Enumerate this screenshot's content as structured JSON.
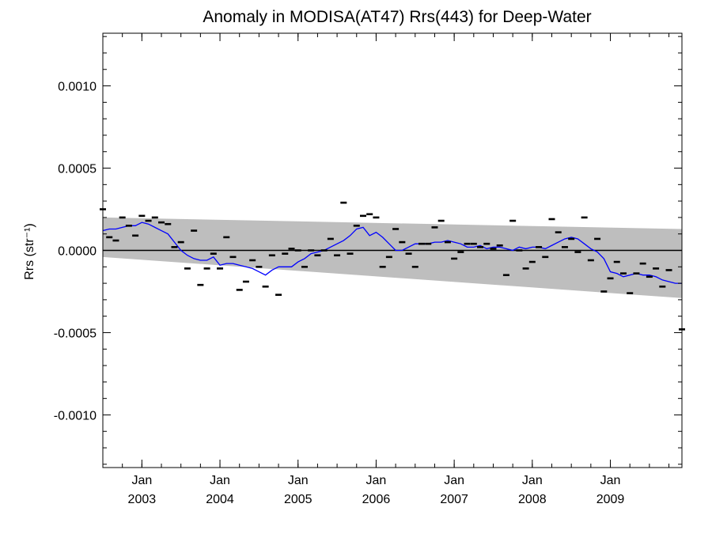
{
  "chart_data": {
    "type": "scatter",
    "title": "Anomaly in MODISA(AT47) Rrs(443) for Deep-Water",
    "ylabel": "Rrs (str⁻¹)",
    "xlabel": "",
    "xlim": [
      "2002-07",
      "2009-12"
    ],
    "ylim": [
      -0.00132,
      0.00132
    ],
    "y_ticks": [
      {
        "value": 0.001,
        "label": "0.0010"
      },
      {
        "value": 0.0005,
        "label": "0.0005"
      },
      {
        "value": 0.0,
        "label": "0.0000"
      },
      {
        "value": -0.0005,
        "label": "-0.0005"
      },
      {
        "value": -0.001,
        "label": "-0.0010"
      }
    ],
    "x_ticks": [
      {
        "value": "2003-01",
        "month": "Jan",
        "year": "2003"
      },
      {
        "value": "2004-01",
        "month": "Jan",
        "year": "2004"
      },
      {
        "value": "2005-01",
        "month": "Jan",
        "year": "2005"
      },
      {
        "value": "2006-01",
        "month": "Jan",
        "year": "2006"
      },
      {
        "value": "2007-01",
        "month": "Jan",
        "year": "2007"
      },
      {
        "value": "2008-01",
        "month": "Jan",
        "year": "2008"
      },
      {
        "value": "2009-01",
        "month": "Jan",
        "year": "2009"
      }
    ],
    "band": {
      "upper": [
        [
          "2002-07",
          0.0002
        ],
        [
          "2009-12",
          0.00013
        ]
      ],
      "lower": [
        [
          "2002-07",
          -4e-05
        ],
        [
          "2009-12",
          -0.00029
        ]
      ],
      "color": "#bebebe"
    },
    "zero_line": 0.0,
    "series": [
      {
        "kind": "points",
        "color": "#000000",
        "points": [
          [
            "2002-07",
            0.00025
          ],
          [
            "2002-08",
            8e-05
          ],
          [
            "2002-09",
            6e-05
          ],
          [
            "2002-10",
            0.0002
          ],
          [
            "2002-11",
            0.00015
          ],
          [
            "2002-12",
            9e-05
          ],
          [
            "2003-01",
            0.00021
          ],
          [
            "2003-02",
            0.00018
          ],
          [
            "2003-03",
            0.0002
          ],
          [
            "2003-04",
            0.00017
          ],
          [
            "2003-05",
            0.00016
          ],
          [
            "2003-06",
            2e-05
          ],
          [
            "2003-07",
            5e-05
          ],
          [
            "2003-08",
            -0.00011
          ],
          [
            "2003-09",
            0.00012
          ],
          [
            "2003-10",
            -0.00021
          ],
          [
            "2003-11",
            -0.00011
          ],
          [
            "2003-12",
            -2e-05
          ],
          [
            "2004-01",
            -0.00011
          ],
          [
            "2004-02",
            8e-05
          ],
          [
            "2004-03",
            -4e-05
          ],
          [
            "2004-04",
            -0.00024
          ],
          [
            "2004-05",
            -0.00019
          ],
          [
            "2004-06",
            -6e-05
          ],
          [
            "2004-07",
            -0.0001
          ],
          [
            "2004-08",
            -0.00022
          ],
          [
            "2004-09",
            -3e-05
          ],
          [
            "2004-10",
            -0.00027
          ],
          [
            "2004-11",
            -2e-05
          ],
          [
            "2004-12",
            1e-05
          ],
          [
            "2005-01",
            0.0
          ],
          [
            "2005-02",
            -0.0001
          ],
          [
            "2005-03",
            0.0
          ],
          [
            "2005-04",
            -3e-05
          ],
          [
            "2005-05",
            0.0
          ],
          [
            "2005-06",
            7e-05
          ],
          [
            "2005-07",
            -3e-05
          ],
          [
            "2005-08",
            0.00029
          ],
          [
            "2005-09",
            -2e-05
          ],
          [
            "2005-10",
            0.00015
          ],
          [
            "2005-11",
            0.00021
          ],
          [
            "2005-12",
            0.00022
          ],
          [
            "2006-01",
            0.0002
          ],
          [
            "2006-02",
            -0.0001
          ],
          [
            "2006-03",
            -4e-05
          ],
          [
            "2006-04",
            0.00013
          ],
          [
            "2006-05",
            5e-05
          ],
          [
            "2006-06",
            -2e-05
          ],
          [
            "2006-07",
            -0.0001
          ],
          [
            "2006-08",
            4e-05
          ],
          [
            "2006-09",
            4e-05
          ],
          [
            "2006-10",
            0.00014
          ],
          [
            "2006-11",
            0.00018
          ],
          [
            "2006-12",
            5e-05
          ],
          [
            "2007-01",
            -5e-05
          ],
          [
            "2007-02",
            -1e-05
          ],
          [
            "2007-03",
            4e-05
          ],
          [
            "2007-04",
            4e-05
          ],
          [
            "2007-05",
            2e-05
          ],
          [
            "2007-06",
            4e-05
          ],
          [
            "2007-07",
            1e-05
          ],
          [
            "2007-08",
            3e-05
          ],
          [
            "2007-09",
            -0.00015
          ],
          [
            "2007-10",
            0.00018
          ],
          [
            "2007-11",
            0.0
          ],
          [
            "2007-12",
            -0.00011
          ],
          [
            "2008-01",
            -7e-05
          ],
          [
            "2008-02",
            2e-05
          ],
          [
            "2008-03",
            -4e-05
          ],
          [
            "2008-04",
            0.00019
          ],
          [
            "2008-05",
            0.00011
          ],
          [
            "2008-06",
            2e-05
          ],
          [
            "2008-07",
            7e-05
          ],
          [
            "2008-08",
            -1e-05
          ],
          [
            "2008-09",
            0.0002
          ],
          [
            "2008-10",
            -6e-05
          ],
          [
            "2008-11",
            7e-05
          ],
          [
            "2008-12",
            -0.00025
          ],
          [
            "2009-01",
            -0.00017
          ],
          [
            "2009-02",
            -7e-05
          ],
          [
            "2009-03",
            -0.00014
          ],
          [
            "2009-04",
            -0.00026
          ],
          [
            "2009-05",
            -0.00014
          ],
          [
            "2009-06",
            -8e-05
          ],
          [
            "2009-07",
            -0.00016
          ],
          [
            "2009-08",
            -0.00011
          ],
          [
            "2009-09",
            -0.00022
          ],
          [
            "2009-10",
            -0.00012
          ],
          [
            "2009-12",
            -0.00048
          ]
        ]
      },
      {
        "kind": "line",
        "color": "#0000ff",
        "points": [
          [
            "2002-07",
            0.00012
          ],
          [
            "2002-08",
            0.00013
          ],
          [
            "2002-09",
            0.00013
          ],
          [
            "2002-10",
            0.00014
          ],
          [
            "2002-11",
            0.00015
          ],
          [
            "2002-12",
            0.00015
          ],
          [
            "2003-01",
            0.00017
          ],
          [
            "2003-02",
            0.00016
          ],
          [
            "2003-03",
            0.00014
          ],
          [
            "2003-04",
            0.00012
          ],
          [
            "2003-05",
            0.0001
          ],
          [
            "2003-06",
            5e-05
          ],
          [
            "2003-07",
            0.0
          ],
          [
            "2003-08",
            -3e-05
          ],
          [
            "2003-09",
            -5e-05
          ],
          [
            "2003-10",
            -6e-05
          ],
          [
            "2003-11",
            -6e-05
          ],
          [
            "2003-12",
            -4e-05
          ],
          [
            "2004-01",
            -9e-05
          ],
          [
            "2004-02",
            -8e-05
          ],
          [
            "2004-03",
            -8e-05
          ],
          [
            "2004-04",
            -9e-05
          ],
          [
            "2004-05",
            -0.0001
          ],
          [
            "2004-06",
            -0.00011
          ],
          [
            "2004-07",
            -0.00013
          ],
          [
            "2004-08",
            -0.00015
          ],
          [
            "2004-09",
            -0.00012
          ],
          [
            "2004-10",
            -0.0001
          ],
          [
            "2004-11",
            -0.0001
          ],
          [
            "2004-12",
            -0.0001
          ],
          [
            "2005-01",
            -7e-05
          ],
          [
            "2005-02",
            -5e-05
          ],
          [
            "2005-03",
            -2e-05
          ],
          [
            "2005-04",
            -1e-05
          ],
          [
            "2005-05",
            0.0
          ],
          [
            "2005-06",
            2e-05
          ],
          [
            "2005-07",
            4e-05
          ],
          [
            "2005-08",
            6e-05
          ],
          [
            "2005-09",
            9e-05
          ],
          [
            "2005-10",
            0.00013
          ],
          [
            "2005-11",
            0.00014
          ],
          [
            "2005-12",
            9e-05
          ],
          [
            "2006-01",
            0.00011
          ],
          [
            "2006-02",
            8e-05
          ],
          [
            "2006-03",
            4e-05
          ],
          [
            "2006-04",
            0.0
          ],
          [
            "2006-05",
            0.0
          ],
          [
            "2006-06",
            2e-05
          ],
          [
            "2006-07",
            4e-05
          ],
          [
            "2006-08",
            4e-05
          ],
          [
            "2006-09",
            4e-05
          ],
          [
            "2006-10",
            5e-05
          ],
          [
            "2006-11",
            5e-05
          ],
          [
            "2006-12",
            6e-05
          ],
          [
            "2007-01",
            5e-05
          ],
          [
            "2007-02",
            4e-05
          ],
          [
            "2007-03",
            2e-05
          ],
          [
            "2007-04",
            2e-05
          ],
          [
            "2007-05",
            3e-05
          ],
          [
            "2007-06",
            1e-05
          ],
          [
            "2007-07",
            2e-05
          ],
          [
            "2007-08",
            2e-05
          ],
          [
            "2007-09",
            1e-05
          ],
          [
            "2007-10",
            0.0
          ],
          [
            "2007-11",
            2e-05
          ],
          [
            "2007-12",
            1e-05
          ],
          [
            "2008-01",
            2e-05
          ],
          [
            "2008-02",
            2e-05
          ],
          [
            "2008-03",
            1e-05
          ],
          [
            "2008-04",
            3e-05
          ],
          [
            "2008-05",
            5e-05
          ],
          [
            "2008-06",
            7e-05
          ],
          [
            "2008-07",
            8e-05
          ],
          [
            "2008-08",
            7e-05
          ],
          [
            "2008-09",
            4e-05
          ],
          [
            "2008-10",
            1e-05
          ],
          [
            "2008-11",
            -1e-05
          ],
          [
            "2008-12",
            -5e-05
          ],
          [
            "2009-01",
            -0.00013
          ],
          [
            "2009-02",
            -0.00014
          ],
          [
            "2009-03",
            -0.00016
          ],
          [
            "2009-04",
            -0.00015
          ],
          [
            "2009-05",
            -0.00014
          ],
          [
            "2009-06",
            -0.00015
          ],
          [
            "2009-07",
            -0.00015
          ],
          [
            "2009-08",
            -0.00016
          ],
          [
            "2009-09",
            -0.00018
          ],
          [
            "2009-10",
            -0.00019
          ],
          [
            "2009-11",
            -0.0002
          ],
          [
            "2009-12",
            -0.0002
          ]
        ]
      }
    ],
    "grid": false,
    "legend": "none"
  }
}
